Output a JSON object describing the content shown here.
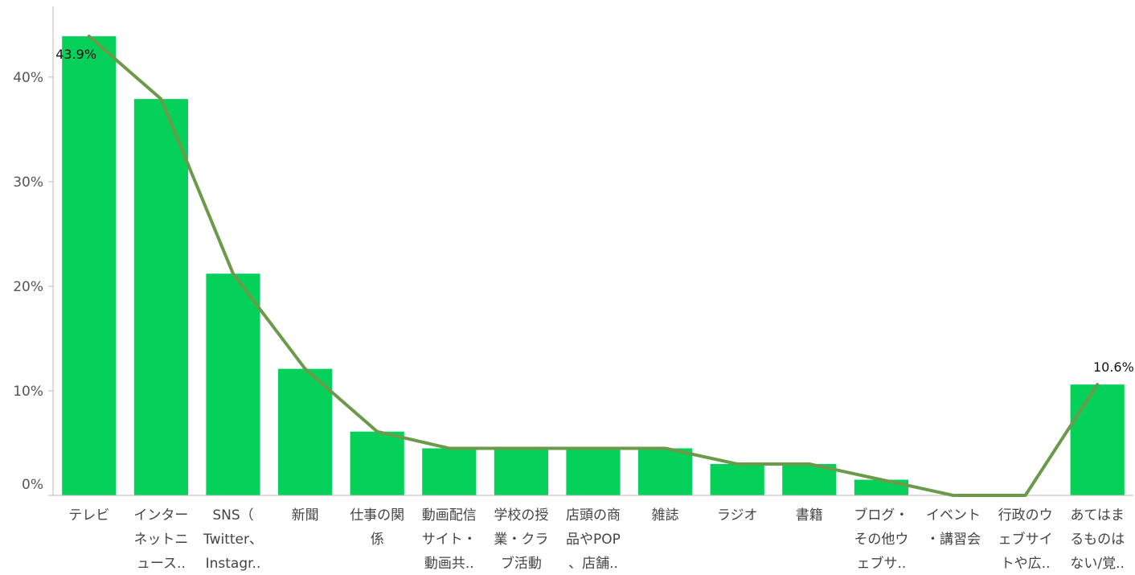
{
  "chart_data": {
    "type": "bar",
    "categories": [
      [
        "テレビ"
      ],
      [
        "インター",
        "ネットニ",
        "ュース.."
      ],
      [
        "SNS（",
        "Twitter、",
        "Instagr.."
      ],
      [
        "新聞"
      ],
      [
        "仕事の関",
        "係"
      ],
      [
        "動画配信",
        "サイト・",
        "動画共.."
      ],
      [
        "学校の授",
        "業・クラ",
        "ブ活動"
      ],
      [
        "店頭の商",
        "品やPOP",
        "、店舗.."
      ],
      [
        "雑誌"
      ],
      [
        "ラジオ"
      ],
      [
        "書籍"
      ],
      [
        "ブログ・",
        "その他ウ",
        "ェブサ.."
      ],
      [
        "イベント",
        "・講習会"
      ],
      [
        "行政のウ",
        "ェブサイ",
        "トや広.."
      ],
      [
        "あてはま",
        "るものは",
        "ない/覚.."
      ]
    ],
    "values": [
      43.9,
      37.9,
      21.2,
      12.1,
      6.1,
      4.5,
      4.5,
      4.5,
      4.5,
      3.0,
      3.0,
      1.5,
      0.0,
      0.0,
      10.6
    ],
    "line_values": [
      43.9,
      37.9,
      21.2,
      12.1,
      6.1,
      4.5,
      4.5,
      4.5,
      4.5,
      3.0,
      3.0,
      1.5,
      0.0,
      0.0,
      10.6
    ],
    "data_labels": [
      {
        "index": 0,
        "text": "43.9%"
      },
      {
        "index": 14,
        "text": "10.6%"
      }
    ],
    "yticks": [
      {
        "value": 0,
        "label": "0%"
      },
      {
        "value": 10,
        "label": "10%"
      },
      {
        "value": 20,
        "label": "20%"
      },
      {
        "value": 30,
        "label": "30%"
      },
      {
        "value": 40,
        "label": "40%"
      }
    ],
    "ylim": [
      0,
      46.6
    ],
    "grid": false,
    "legend": "none",
    "colors": {
      "bar": "#05d15a",
      "line": "#6a9a4a",
      "axis": "#bbbbbb"
    }
  }
}
